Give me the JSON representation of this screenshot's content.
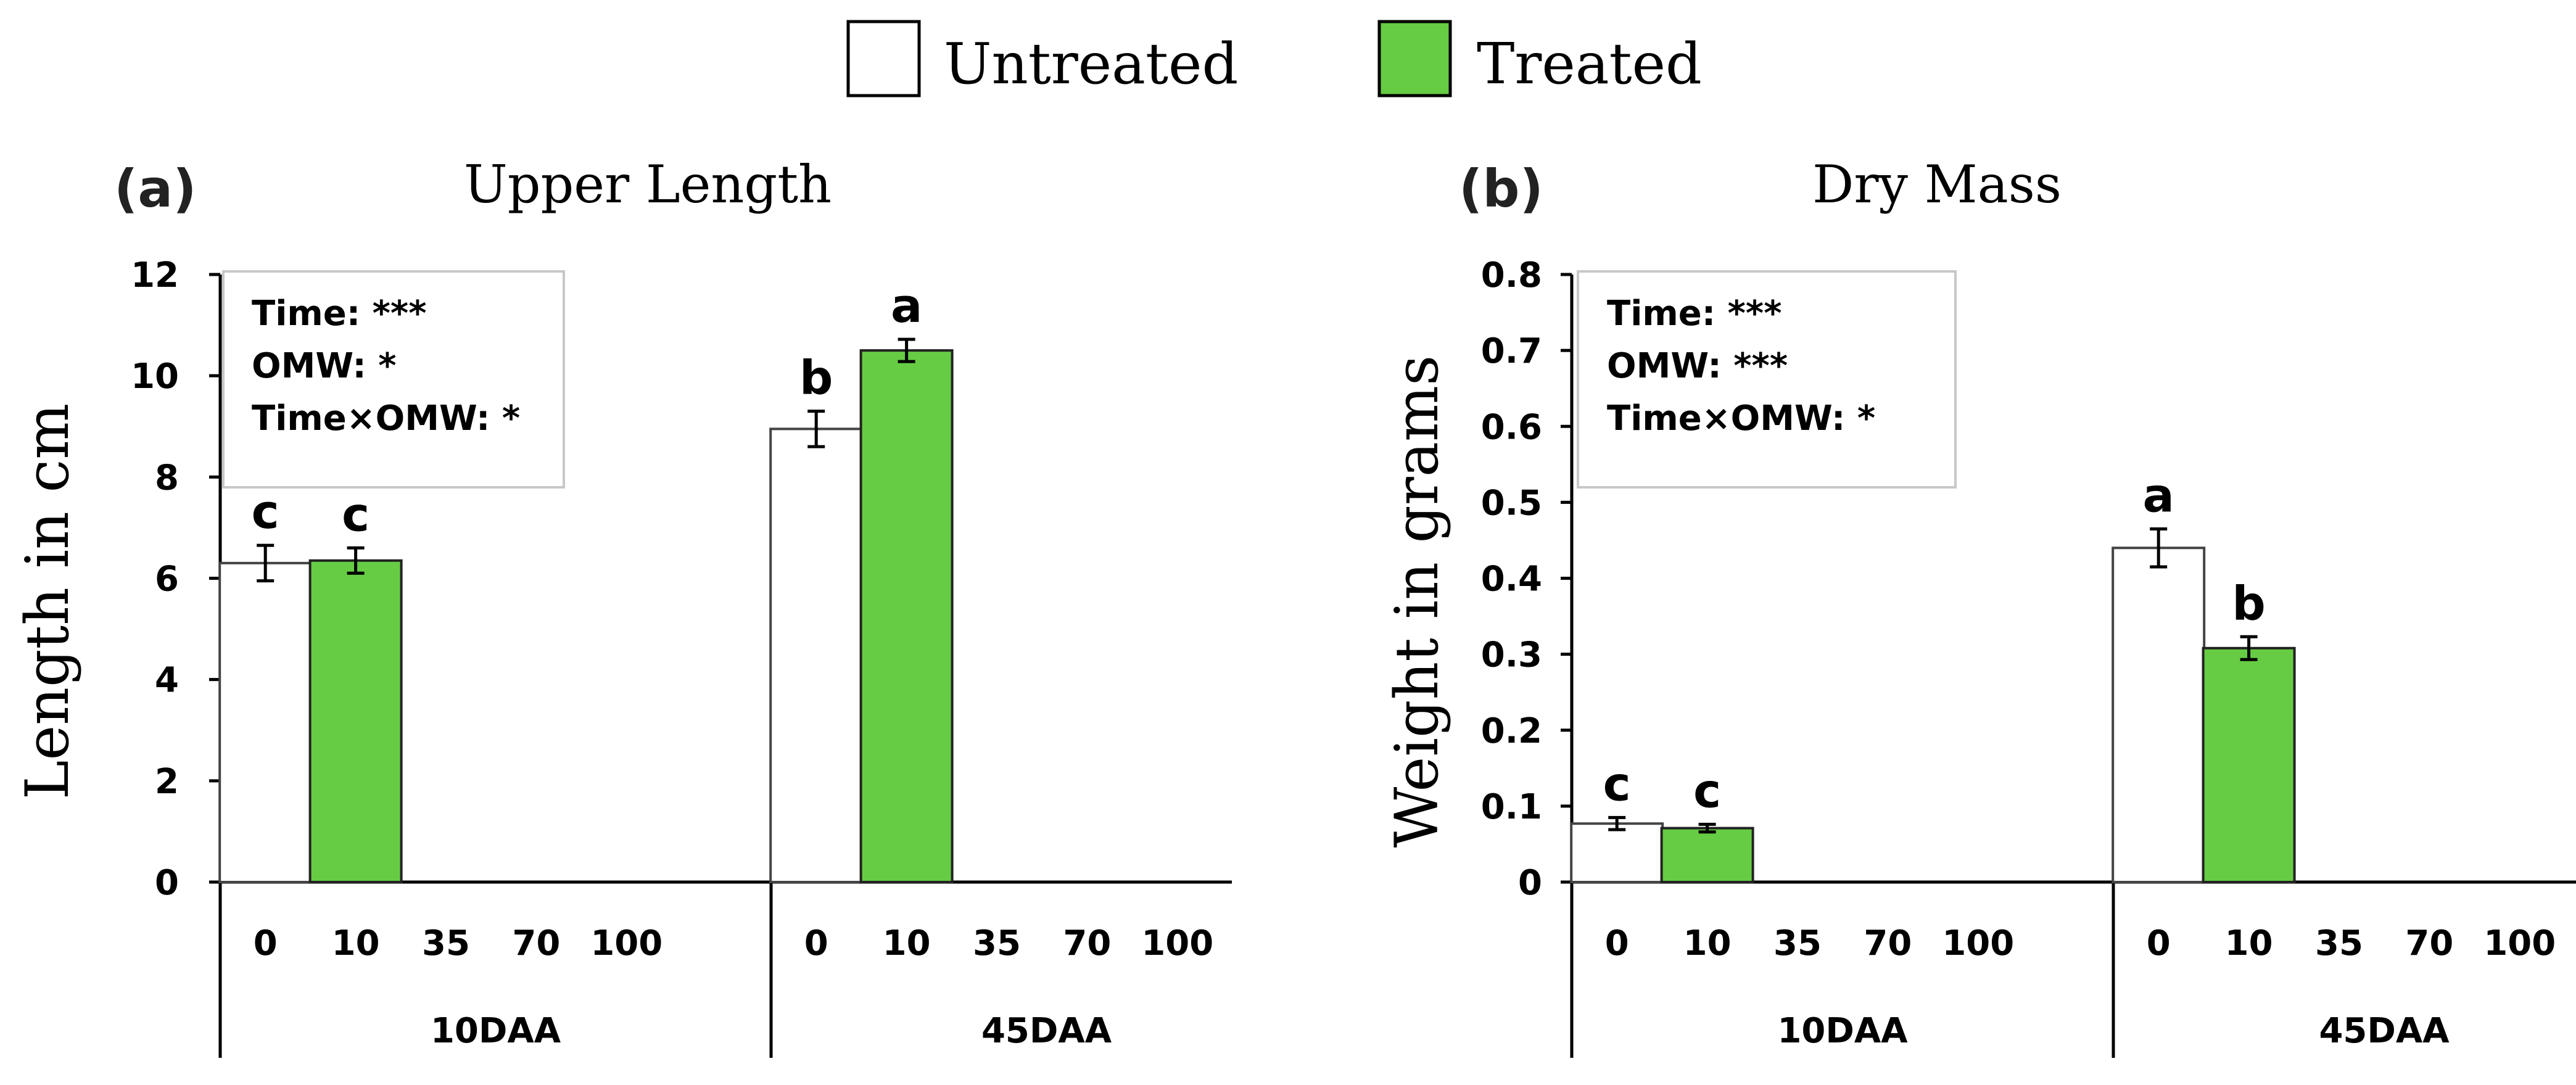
{
  "legend": [
    {
      "label": "Untreated",
      "color": "#ffffff"
    },
    {
      "label": "Treated",
      "color": "#66cc44"
    }
  ],
  "chart_data": [
    {
      "type": "bar",
      "panel": "(a)",
      "title": "Upper Length",
      "ylabel": "Length in cm",
      "ylim": [
        0,
        12
      ],
      "yticks": [
        "0",
        "2",
        "4",
        "6",
        "8",
        "10",
        "12"
      ],
      "categories": [
        "0",
        "10",
        "35",
        "70",
        "100"
      ],
      "groups": [
        "10DAA",
        "45DAA"
      ],
      "stats": [
        "Time: ***",
        "OMW: *",
        "Time×OMW: *"
      ],
      "bars": [
        {
          "group": "10DAA",
          "series": "Untreated",
          "category": "0",
          "value": 6.3,
          "error": 0.35,
          "letter": "c"
        },
        {
          "group": "10DAA",
          "series": "Treated",
          "category": "10",
          "value": 6.35,
          "error": 0.25,
          "letter": "c"
        },
        {
          "group": "45DAA",
          "series": "Untreated",
          "category": "0",
          "value": 8.95,
          "error": 0.35,
          "letter": "b"
        },
        {
          "group": "45DAA",
          "series": "Treated",
          "category": "10",
          "value": 10.5,
          "error": 0.22,
          "letter": "a"
        }
      ]
    },
    {
      "type": "bar",
      "panel": "(b)",
      "title": "Dry Mass",
      "ylabel": "Weight in grams",
      "ylim": [
        0,
        0.8
      ],
      "yticks": [
        "0",
        "0.1",
        "0.2",
        "0.3",
        "0.4",
        "0.5",
        "0.6",
        "0.7",
        "0.8"
      ],
      "categories": [
        "0",
        "10",
        "35",
        "70",
        "100"
      ],
      "groups": [
        "10DAA",
        "45DAA"
      ],
      "stats": [
        "Time: ***",
        "OMW: ***",
        "Time×OMW: *"
      ],
      "bars": [
        {
          "group": "10DAA",
          "series": "Untreated",
          "category": "0",
          "value": 0.077,
          "error": 0.008,
          "letter": "c"
        },
        {
          "group": "10DAA",
          "series": "Treated",
          "category": "10",
          "value": 0.071,
          "error": 0.005,
          "letter": "c"
        },
        {
          "group": "45DAA",
          "series": "Untreated",
          "category": "0",
          "value": 0.44,
          "error": 0.025,
          "letter": "a"
        },
        {
          "group": "45DAA",
          "series": "Treated",
          "category": "10",
          "value": 0.308,
          "error": 0.015,
          "letter": "b"
        }
      ]
    }
  ]
}
